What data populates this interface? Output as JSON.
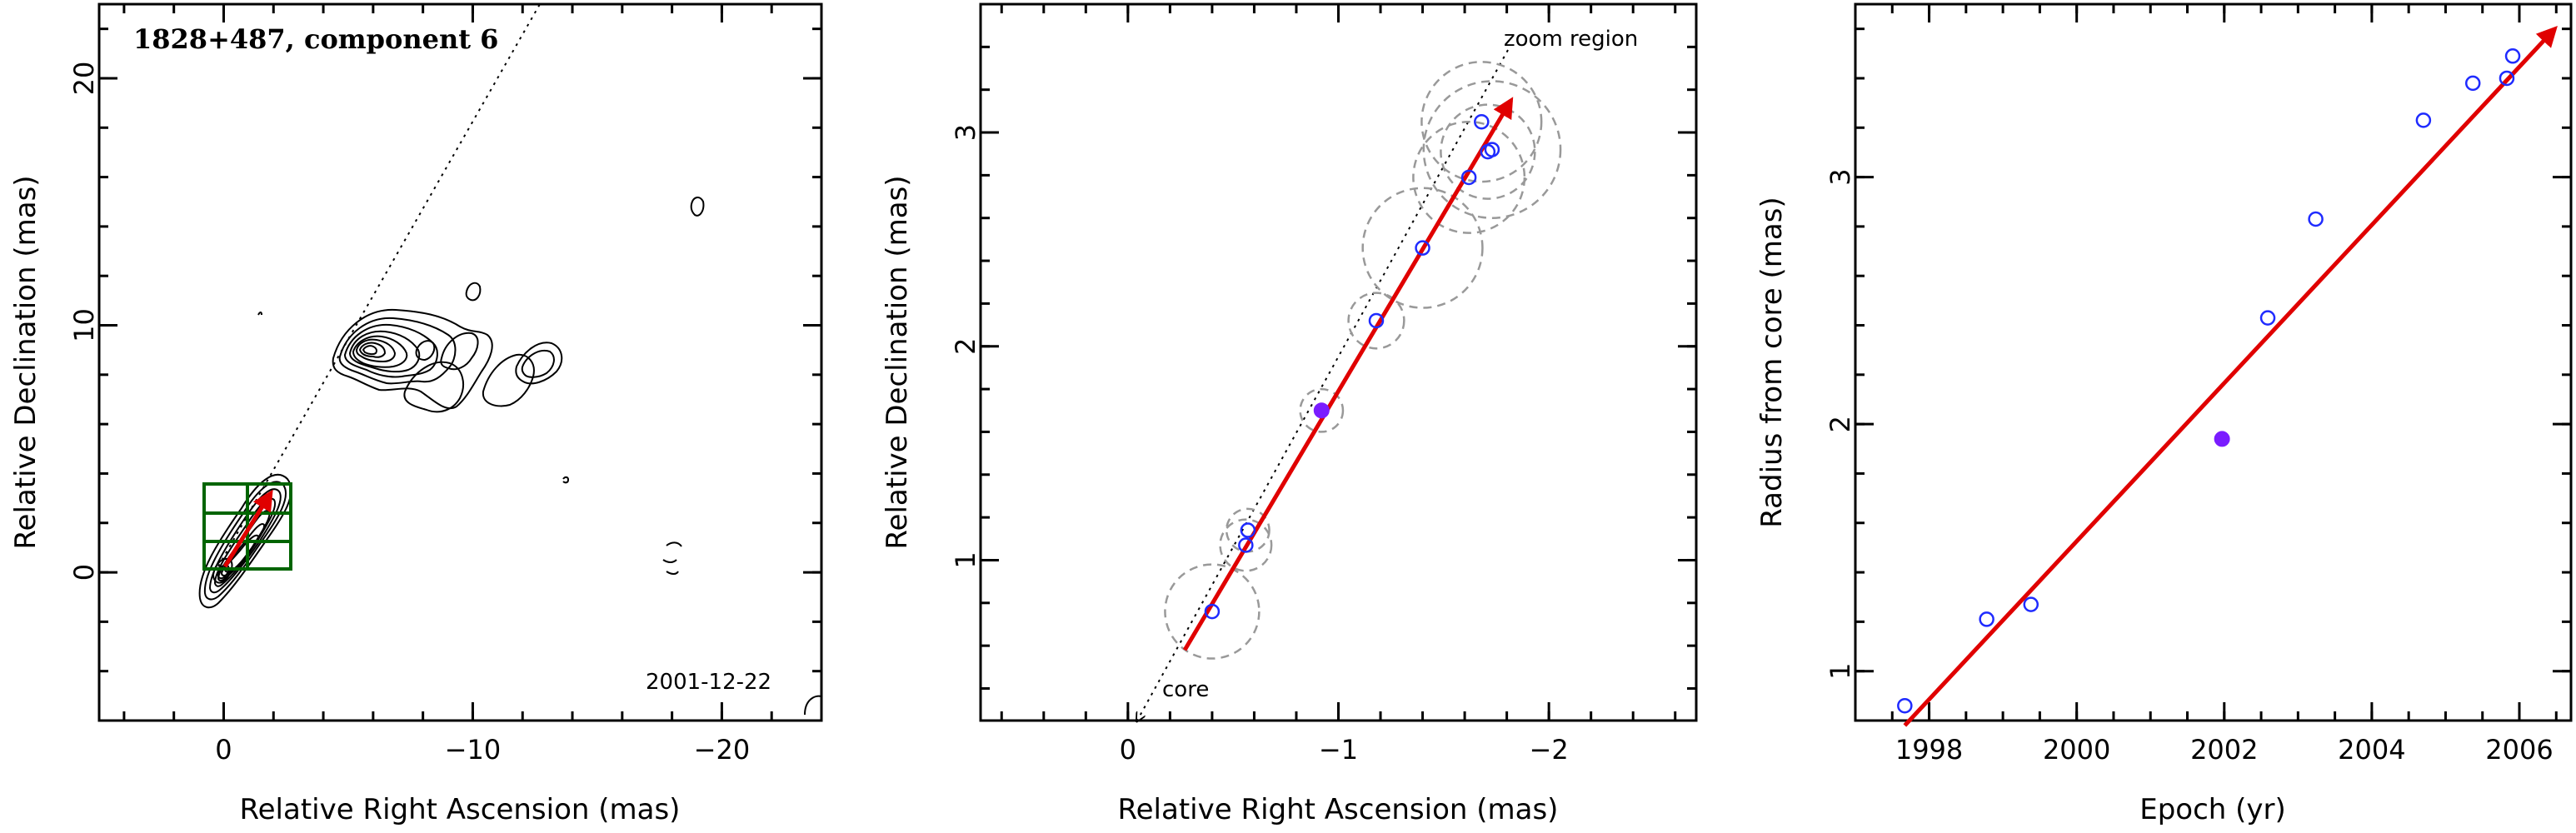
{
  "chart_data": [
    {
      "type": "scatter",
      "title": "1828+487, component 6",
      "annotation": "2001-12-22",
      "xlabel": "Relative Right Ascension (mas)",
      "ylabel": "Relative Declination (mas)",
      "xlim": [
        5,
        -24
      ],
      "ylim": [
        -6,
        23
      ],
      "xticks": [
        0,
        -10,
        -20
      ],
      "yticks": [
        0,
        10,
        20
      ],
      "colors": {
        "arrow": "#e00000",
        "box": "#006400",
        "contour": "#000000"
      }
    },
    {
      "type": "scatter",
      "xlabel": "Relative Right Ascension (mas)",
      "ylabel": "Relative Declination (mas)",
      "xlim": [
        0.7,
        -2.7
      ],
      "ylim": [
        0.25,
        3.6
      ],
      "xticks": [
        0,
        -1,
        -2
      ],
      "yticks": [
        1,
        2,
        3
      ],
      "labels": {
        "zoom": "zoom region",
        "core": "core"
      },
      "points": [
        {
          "x": -0.4,
          "y": 0.76,
          "r": 0.22
        },
        {
          "x": -0.56,
          "y": 1.07,
          "r": 0.12
        },
        {
          "x": -0.57,
          "y": 1.14,
          "r": 0.1
        },
        {
          "x": -0.92,
          "y": 1.7,
          "r": 0.1,
          "filled": true
        },
        {
          "x": -1.18,
          "y": 2.12,
          "r": 0.13
        },
        {
          "x": -1.4,
          "y": 2.46,
          "r": 0.28
        },
        {
          "x": -1.62,
          "y": 2.79,
          "r": 0.26
        },
        {
          "x": -1.68,
          "y": 3.05,
          "r": 0.28
        },
        {
          "x": -1.71,
          "y": 2.91,
          "r": 0.22
        },
        {
          "x": -1.73,
          "y": 2.92,
          "r": 0.32
        }
      ],
      "arrow": {
        "x0": -0.27,
        "y0": 0.58,
        "x1": -1.82,
        "y1": 3.15
      },
      "colors": {
        "points": "#1f2bff",
        "filled": "#7a1cff",
        "arrow": "#e00000"
      }
    },
    {
      "type": "scatter",
      "xlabel": "Epoch (yr)",
      "ylabel": "Radius from core (mas)",
      "xlim": [
        1997.0,
        2006.7
      ],
      "ylim": [
        0.8,
        3.7
      ],
      "xticks": [
        1998,
        2000,
        2002,
        2004,
        2006
      ],
      "yticks": [
        1,
        2,
        3
      ],
      "points": [
        {
          "x": 1997.67,
          "y": 0.86
        },
        {
          "x": 1998.78,
          "y": 1.21
        },
        {
          "x": 1999.38,
          "y": 1.27
        },
        {
          "x": 2001.97,
          "y": 1.94,
          "filled": true
        },
        {
          "x": 2002.59,
          "y": 2.43
        },
        {
          "x": 2003.24,
          "y": 2.83
        },
        {
          "x": 2004.7,
          "y": 3.23
        },
        {
          "x": 2005.37,
          "y": 3.38
        },
        {
          "x": 2005.83,
          "y": 3.4
        },
        {
          "x": 2005.91,
          "y": 3.49
        }
      ],
      "fit": {
        "x0": 1997.67,
        "y0": 0.78,
        "x1": 2006.48,
        "y1": 3.6
      },
      "colors": {
        "points": "#1f2bff",
        "filled": "#7a1cff",
        "fit": "#e00000"
      }
    }
  ]
}
